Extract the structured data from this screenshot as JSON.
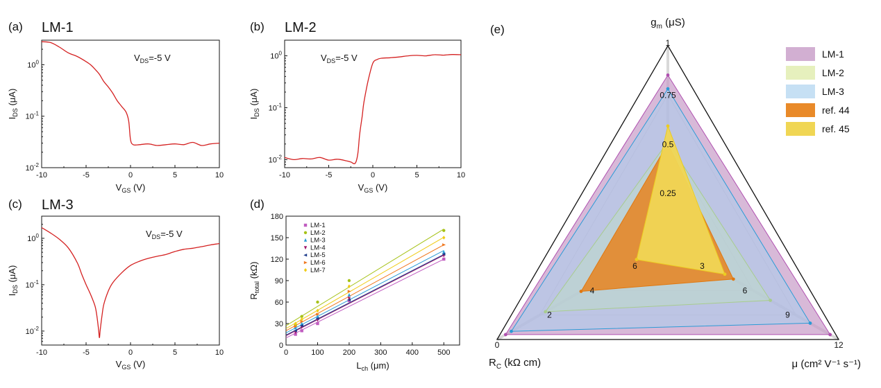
{
  "chart_data": [
    {
      "panel": "a",
      "type": "line",
      "title": "LM-1",
      "annotation_prefix": "V",
      "annotation_sub": "DS",
      "annotation_value": "=-5 V",
      "xlabel": {
        "main": "V",
        "sub": "GS",
        "unit": " (V)"
      },
      "ylabel": {
        "main": "I",
        "sub": "DS",
        "unit": " (μA)"
      },
      "xlim": [
        -10,
        10
      ],
      "ylim": [
        0.01,
        3
      ],
      "yscale": "log",
      "xticks": [
        "-10",
        "-5",
        "0",
        "5",
        "10"
      ],
      "yticks": [
        {
          "base": "10",
          "exp": "0",
          "value": 1
        },
        {
          "base": "10",
          "exp": "-1",
          "value": 0.1
        },
        {
          "base": "10",
          "exp": "-2",
          "value": 0.01
        }
      ],
      "color": "#d42020",
      "x": [
        -10,
        -9,
        -8,
        -7,
        -6,
        -5,
        -4.5,
        -4,
        -3.5,
        -3,
        -2.5,
        -2,
        -1.5,
        -1,
        -0.5,
        -0.2,
        0,
        0.3,
        1,
        2,
        3,
        4,
        5,
        6,
        7,
        8,
        9,
        10
      ],
      "y": [
        2.8,
        2.7,
        2.2,
        1.7,
        1.45,
        1.15,
        1.0,
        0.82,
        0.65,
        0.47,
        0.37,
        0.28,
        0.2,
        0.155,
        0.12,
        0.08,
        0.035,
        0.028,
        0.028,
        0.029,
        0.027,
        0.028,
        0.029,
        0.028,
        0.031,
        0.027,
        0.029,
        0.03
      ]
    },
    {
      "panel": "b",
      "type": "line",
      "title": "LM-2",
      "annotation_prefix": "V",
      "annotation_sub": "DS",
      "annotation_value": "=-5 V",
      "xlabel": {
        "main": "V",
        "sub": "GS",
        "unit": " (V)"
      },
      "ylabel": {
        "main": "I",
        "sub": "DS",
        "unit": " (μA)"
      },
      "xlim": [
        -10,
        10
      ],
      "ylim": [
        0.007,
        2
      ],
      "yscale": "log",
      "xticks": [
        "-10",
        "-5",
        "0",
        "5",
        "10"
      ],
      "yticks": [
        {
          "base": "10",
          "exp": "0",
          "value": 1
        },
        {
          "base": "10",
          "exp": "-1",
          "value": 0.1
        },
        {
          "base": "10",
          "exp": "-2",
          "value": 0.01
        }
      ],
      "color": "#d42020",
      "x": [
        -10,
        -9,
        -8,
        -7,
        -6,
        -5,
        -4,
        -3,
        -2.5,
        -2,
        -1.7,
        -1.5,
        -1.2,
        -1,
        -0.5,
        0,
        0.5,
        1,
        2,
        3,
        4,
        5,
        6,
        7,
        8,
        9,
        10
      ],
      "y": [
        0.011,
        0.01,
        0.0105,
        0.0103,
        0.011,
        0.0098,
        0.0102,
        0.0095,
        0.009,
        0.0085,
        0.013,
        0.03,
        0.07,
        0.13,
        0.35,
        0.72,
        0.85,
        0.9,
        0.92,
        0.95,
        1.0,
        1.02,
        1.0,
        1.05,
        1.03,
        1.06,
        1.05
      ]
    },
    {
      "panel": "c",
      "type": "line",
      "title": "LM-3",
      "annotation_prefix": "V",
      "annotation_sub": "DS",
      "annotation_value": "=-5 V",
      "xlabel": {
        "main": "V",
        "sub": "GS",
        "unit": " (V)"
      },
      "ylabel": {
        "main": "I",
        "sub": "DS",
        "unit": " (μA)"
      },
      "xlim": [
        -10,
        10
      ],
      "ylim": [
        0.005,
        3
      ],
      "yscale": "log",
      "xticks": [
        "-10",
        "-5",
        "0",
        "5",
        "10"
      ],
      "yticks": [
        {
          "base": "10",
          "exp": "0",
          "value": 1
        },
        {
          "base": "10",
          "exp": "-1",
          "value": 0.1
        },
        {
          "base": "10",
          "exp": "-2",
          "value": 0.01
        }
      ],
      "color": "#d42020",
      "x": [
        -10,
        -9,
        -8,
        -7,
        -6,
        -5.5,
        -5,
        -4.5,
        -4,
        -3.8,
        -3.6,
        -3.5,
        -3.4,
        -3.2,
        -3,
        -2.5,
        -2,
        -1,
        0,
        1,
        2,
        3,
        4,
        5,
        6,
        7,
        8,
        9,
        10
      ],
      "y": [
        1.7,
        1.3,
        0.95,
        0.62,
        0.3,
        0.17,
        0.1,
        0.062,
        0.035,
        0.022,
        0.011,
        0.0072,
        0.011,
        0.022,
        0.038,
        0.073,
        0.11,
        0.18,
        0.26,
        0.32,
        0.37,
        0.41,
        0.45,
        0.52,
        0.58,
        0.61,
        0.66,
        0.72,
        0.77
      ]
    },
    {
      "panel": "d",
      "type": "scatter",
      "xlabel": {
        "main": "L",
        "sub": "ch",
        "unit": " (μm)"
      },
      "ylabel": {
        "main": "R",
        "sub": "total",
        "unit": " (kΩ)"
      },
      "xlim": [
        0,
        550
      ],
      "ylim": [
        0,
        180
      ],
      "xticks": [
        0,
        100,
        200,
        300,
        400,
        500
      ],
      "yticks": [
        0,
        30,
        60,
        90,
        120,
        150,
        180
      ],
      "x_points": [
        30,
        50,
        100,
        200,
        500
      ],
      "series": [
        {
          "name": "LM-1",
          "marker": "square",
          "color": "#c05cc0",
          "values": [
            15,
            20,
            30,
            62,
            120
          ],
          "fit": [
            10,
            0.22
          ]
        },
        {
          "name": "LM-2",
          "marker": "circle",
          "color": "#a6c218",
          "values": [
            28,
            40,
            60,
            90,
            160
          ],
          "fit": [
            27,
            0.27
          ]
        },
        {
          "name": "LM-3",
          "marker": "triangle-up",
          "color": "#2a9bd6",
          "values": [
            24,
            30,
            40,
            70,
            130
          ],
          "fit": [
            17,
            0.23
          ]
        },
        {
          "name": "LM-4",
          "marker": "triangle-down",
          "color": "#a0166a",
          "values": [
            18,
            25,
            35,
            65,
            125
          ],
          "fit": [
            13,
            0.225
          ]
        },
        {
          "name": "LM-5",
          "marker": "triangle-left",
          "color": "#1f3d8c",
          "values": [
            20,
            27,
            37,
            63,
            127
          ],
          "fit": [
            14,
            0.225
          ]
        },
        {
          "name": "LM-6",
          "marker": "triangle-right",
          "color": "#f07820",
          "values": [
            26,
            33,
            43,
            75,
            140
          ],
          "fit": [
            20,
            0.24
          ]
        },
        {
          "name": "LM-7",
          "marker": "diamond",
          "color": "#f0cc18",
          "values": [
            30,
            36,
            48,
            82,
            150
          ],
          "fit": [
            23,
            0.255
          ]
        }
      ]
    },
    {
      "panel": "e",
      "type": "radar",
      "axes": [
        {
          "name": "g",
          "sub": "m",
          "unit": " (μS)",
          "max": 1
        },
        {
          "name": "μ (cm² V⁻¹ s⁻¹)",
          "max": 12
        },
        {
          "name": "R",
          "sub": "C",
          "unit": " (kΩ cm)",
          "max": 12,
          "reversed": true
        }
      ],
      "corner_labels": [
        "1",
        "12",
        "0"
      ],
      "top_ticks": [
        "0.25",
        "0.5",
        "0.75"
      ],
      "right_ticks": [
        "3",
        "6",
        "9"
      ],
      "left_ticks": [
        "2",
        "4",
        "6"
      ],
      "series": [
        {
          "name": "LM-1",
          "color": "#c79bc7",
          "stroke": "#b050b0",
          "opacity": 0.7,
          "values": [
            0.85,
            11.4,
            0.6
          ]
        },
        {
          "name": "LM-2",
          "color": "#d8e89a",
          "stroke": "#a8c81a",
          "opacity": 0.55,
          "values": [
            0.51,
            7.2,
            3.4
          ]
        },
        {
          "name": "LM-3",
          "color": "#a8d0ee",
          "stroke": "#2a9bd6",
          "opacity": 0.55,
          "values": [
            0.78,
            10.0,
            1.0
          ]
        },
        {
          "name": "ref. 44",
          "color": "#e8841e",
          "stroke": "#e07810",
          "opacity": 0.85,
          "values": [
            0.5,
            4.6,
            5.9
          ]
        },
        {
          "name": "ref. 45",
          "color": "#f0d654",
          "stroke": "#eccc20",
          "opacity": 0.95,
          "values": [
            0.59,
            4.0,
            9.8
          ]
        }
      ]
    }
  ],
  "panel_labels": {
    "a": "(a)",
    "b": "(b)",
    "c": "(c)",
    "d": "(d)",
    "e": "(e)"
  }
}
